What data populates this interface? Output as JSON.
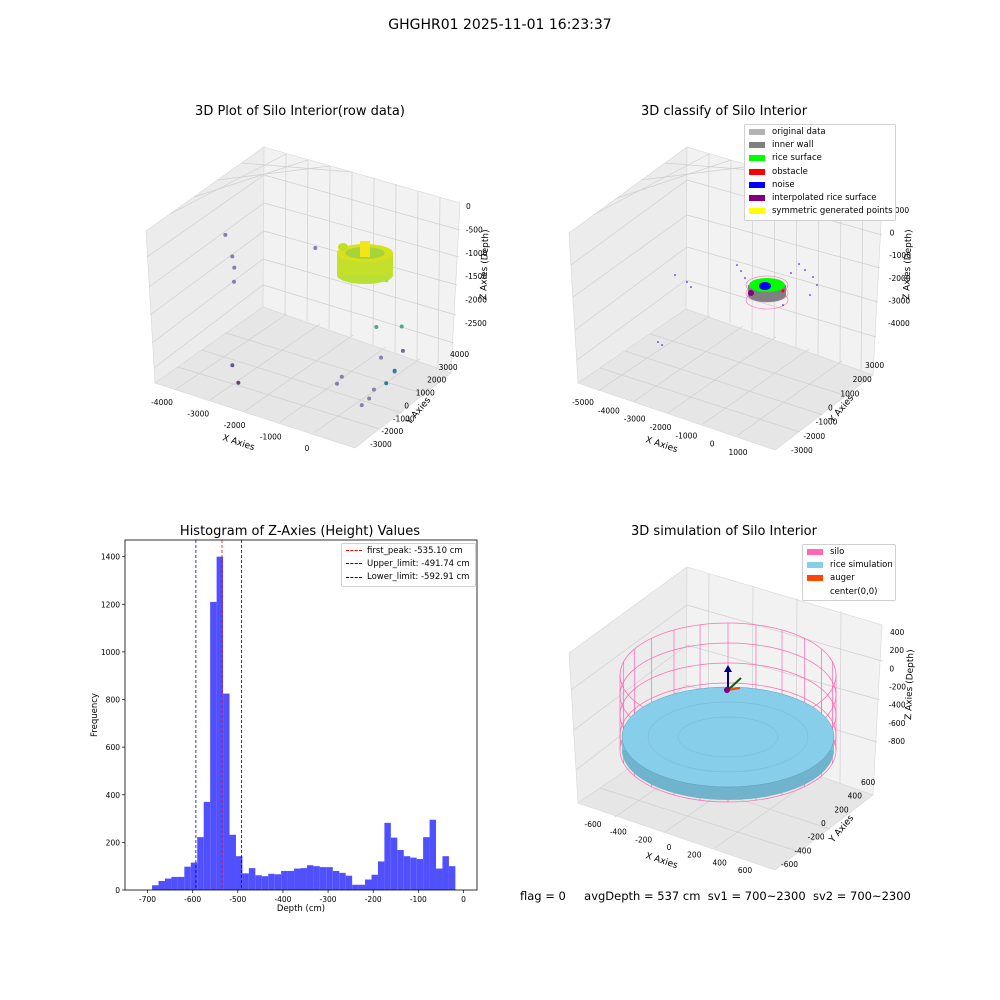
{
  "suptitle": "GHGHR01 2025-11-01 16:23:37",
  "footer": {
    "flag": "flag = 0",
    "avg_depth": "avgDepth = 537 cm",
    "sv1": "sv1 = 700~2300",
    "sv2": "sv2 = 700~2300"
  },
  "chart_data": [
    {
      "type": "scatter",
      "title": "3D Plot of Silo Interior(row data)",
      "xlabel": "X Axies",
      "ylabel": "Y Axies",
      "zlabel": "Z Axies (Depth)",
      "x_ticks": [
        "-4000",
        "-3000",
        "-2000",
        "-1000",
        "0"
      ],
      "y_ticks": [
        "-3000",
        "-2000",
        "-1000",
        "0",
        "1000",
        "2000",
        "3000",
        "4000"
      ],
      "z_ticks": [
        "-2500",
        "-2000",
        "-1500",
        "-1000",
        "-500",
        "0"
      ],
      "xlim": [
        -4500,
        800
      ],
      "ylim": [
        -3500,
        4500
      ],
      "zlim": [
        -2800,
        200
      ],
      "points": [
        {
          "x": -4200,
          "y": 900,
          "z": -600,
          "color": "#8a7db0"
        },
        {
          "x": -3900,
          "y": 600,
          "z": -900,
          "color": "#8a7db0"
        },
        {
          "x": -3700,
          "y": 200,
          "z": -1000,
          "color": "#8a7db0"
        },
        {
          "x": -3600,
          "y": -100,
          "z": -1200,
          "color": "#8a7db0"
        },
        {
          "x": -2300,
          "y": 2500,
          "z": -700,
          "color": "#8a7db0"
        },
        {
          "x": -2900,
          "y": -2200,
          "z": -2300,
          "color": "#5e5a8c"
        },
        {
          "x": -2600,
          "y": -2600,
          "z": -2500,
          "color": "#6b3f7d"
        },
        {
          "x": -1200,
          "y": 3500,
          "z": -900,
          "color": "#7fc97f"
        },
        {
          "x": -800,
          "y": 3400,
          "z": -950,
          "color": "#7fc97f"
        },
        {
          "x": -900,
          "y": 3100,
          "z": -850,
          "color": "#7fc97f"
        },
        {
          "x": -500,
          "y": 3000,
          "z": -1000,
          "color": "#9ad27a"
        },
        {
          "x": 200,
          "y": 2200,
          "z": -1600,
          "color": "#4aa88e"
        },
        {
          "x": -400,
          "y": 1900,
          "z": -1700,
          "color": "#4aa88e"
        },
        {
          "x": 700,
          "y": 800,
          "z": -1700,
          "color": "#6e6e9a"
        },
        {
          "x": 200,
          "y": 500,
          "z": -1900,
          "color": "#8a7db0"
        },
        {
          "x": 800,
          "y": -200,
          "z": -1900,
          "color": "#8a7db0"
        },
        {
          "x": 900,
          "y": -500,
          "z": -1800,
          "color": "#2f7f8f"
        },
        {
          "x": 800,
          "y": -900,
          "z": -2000,
          "color": "#2f7f8f"
        },
        {
          "x": 600,
          "y": -1300,
          "z": -2100,
          "color": "#8a7db0"
        },
        {
          "x": 600,
          "y": -1700,
          "z": -2200,
          "color": "#8a7db0"
        },
        {
          "x": 500,
          "y": -2000,
          "z": -2300,
          "color": "#8a7db0"
        },
        {
          "x": -200,
          "y": -1500,
          "z": -2000,
          "color": "#8a7db0"
        },
        {
          "x": 0,
          "y": -2500,
          "z": -1900,
          "color": "#8a7db0"
        }
      ],
      "ring": {
        "cx": 0,
        "cy": 1900,
        "radius": 600,
        "z_top": -900,
        "z_bottom": -1300,
        "colors": [
          "#d4e12a",
          "#a8d83a",
          "#e8ea1c"
        ]
      }
    },
    {
      "type": "scatter",
      "title": "3D classify of Silo Interior",
      "xlabel": "X Axies",
      "ylabel": "Y Axies",
      "zlabel": "Z Axies (Depth)",
      "x_ticks": [
        "-5000",
        "-4000",
        "-3000",
        "-2000",
        "-1000",
        "0",
        "1000"
      ],
      "y_ticks": [
        "-3000",
        "-2000",
        "-1000",
        "0",
        "1000",
        "2000",
        "3000"
      ],
      "z_ticks": [
        "-4000",
        "-3000",
        "-2000",
        "-1000",
        "0",
        "1000"
      ],
      "legend": [
        {
          "label": "original data",
          "color": "#b3b3b3"
        },
        {
          "label": "inner wall",
          "color": "#808080"
        },
        {
          "label": "rice surface",
          "color": "#00ff00"
        },
        {
          "label": "obstacle",
          "color": "#ff0000"
        },
        {
          "label": "noise",
          "color": "#0000ff"
        },
        {
          "label": "interpolated rice surface",
          "color": "#800080"
        },
        {
          "label": "symmetric generated points",
          "color": "#ffff00"
        }
      ]
    },
    {
      "type": "bar",
      "title": "Histogram of Z-Axies (Height) Values",
      "xlabel": "Depth (cm)",
      "ylabel": "Frequency",
      "xlim": [
        -750,
        30
      ],
      "ylim": [
        0,
        1470
      ],
      "x_ticks": [
        -700,
        -600,
        -500,
        -400,
        -300,
        -200,
        -100,
        0
      ],
      "y_ticks": [
        0,
        200,
        400,
        600,
        800,
        1000,
        1200,
        1400
      ],
      "bin_start": -690,
      "bin_width": 14.3,
      "values": [
        20,
        38,
        48,
        55,
        55,
        98,
        115,
        222,
        370,
        1210,
        1400,
        825,
        232,
        142,
        70,
        92,
        62,
        58,
        68,
        66,
        80,
        80,
        90,
        92,
        104,
        100,
        96,
        96,
        80,
        72,
        60,
        22,
        22,
        44,
        64,
        120,
        282,
        220,
        168,
        142,
        136,
        130,
        222,
        295,
        90,
        142,
        100
      ],
      "color": "#5050ff",
      "vlines": [
        {
          "label": "first_peak: -535.10 cm",
          "x": -535.1,
          "color": "#ff0000"
        },
        {
          "label": "Upper_limit: -491.74 cm",
          "x": -491.74,
          "color": "#0000aa"
        },
        {
          "label": "Lower_limit: -592.91 cm",
          "x": -592.91,
          "color": "#0000aa"
        }
      ],
      "legend_position": "top-right"
    },
    {
      "type": "scatter",
      "title": "3D simulation of Silo Interior",
      "xlabel": "X Axies",
      "ylabel": "Y Axies",
      "zlabel": "Z Axies (Depth)",
      "x_ticks": [
        "-600",
        "-400",
        "-200",
        "0",
        "200",
        "400",
        "600"
      ],
      "y_ticks": [
        "-600",
        "-400",
        "-200",
        "0",
        "200",
        "400",
        "600"
      ],
      "z_ticks": [
        "-800",
        "-600",
        "-400",
        "-200",
        "0",
        "200",
        "400"
      ],
      "legend": [
        {
          "label": "silo",
          "color": "#ff69b4"
        },
        {
          "label": "rice simulation",
          "color": "#87ceeb"
        },
        {
          "label": "auger",
          "color": "#ff4500"
        },
        {
          "label": "center(0,0)",
          "color": "#ffffff"
        }
      ]
    }
  ]
}
